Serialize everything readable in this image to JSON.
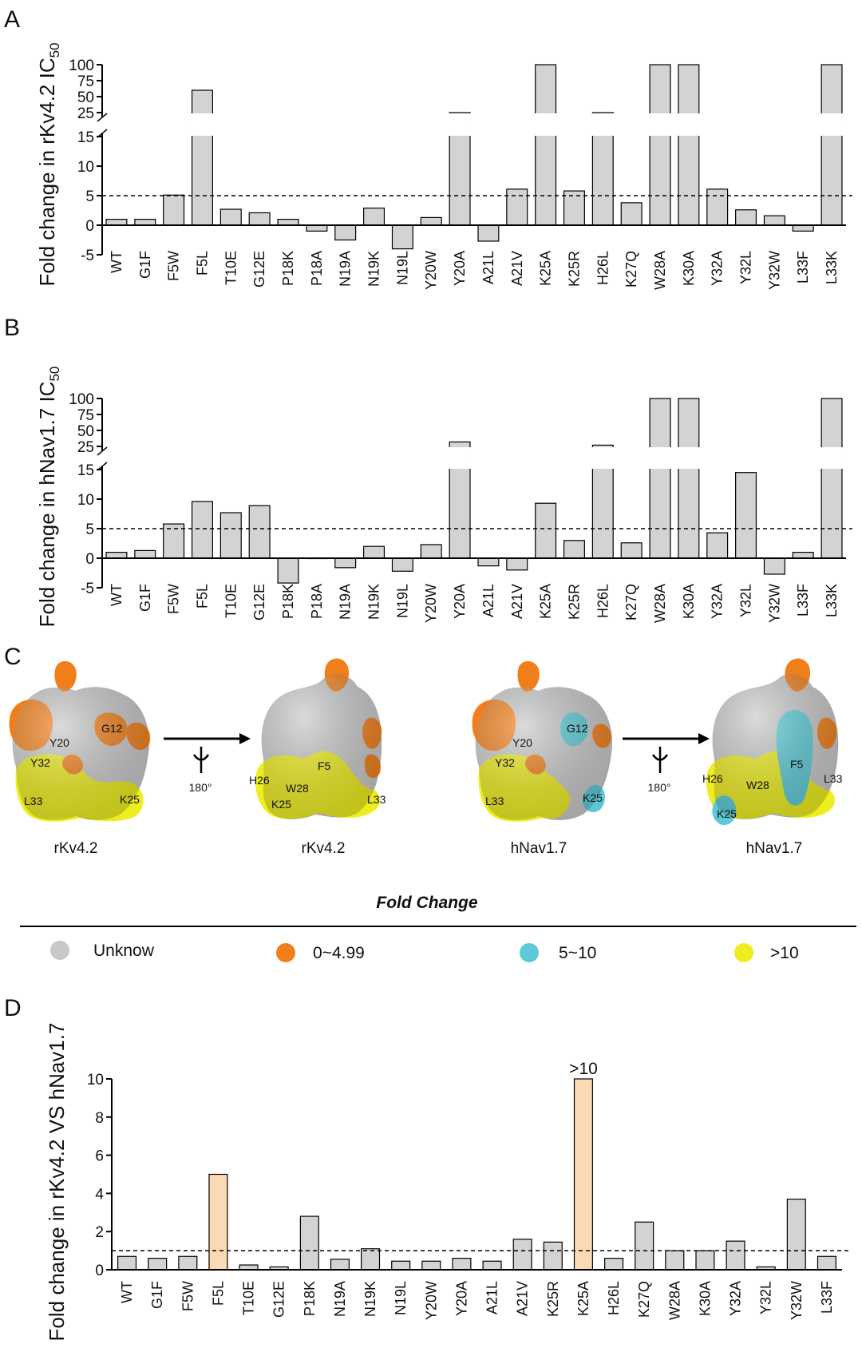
{
  "panels": {
    "A": {
      "letter": "A",
      "ylabel": "Fold change in rKv4.2 IC",
      "ylabel_sub": "50"
    },
    "B": {
      "letter": "B",
      "ylabel": "Fold change in hNav1.7 IC",
      "ylabel_sub": "50"
    },
    "C": {
      "letter": "C",
      "structures": [
        {
          "caption": "rKv4.2",
          "labels": [
            "G12",
            "Y20",
            "Y32",
            "L33",
            "K25"
          ]
        },
        {
          "caption": "rKv4.2",
          "labels": [
            "F5",
            "H26",
            "W28",
            "K25",
            "L33"
          ]
        },
        {
          "caption": "hNav1.7",
          "labels": [
            "G12",
            "Y20",
            "Y32",
            "K25",
            "L33"
          ]
        },
        {
          "caption": "hNav1.7",
          "labels": [
            "F5",
            "H26",
            "W28",
            "L33",
            "K25"
          ]
        }
      ],
      "rotation_labels": [
        "180°",
        "180°"
      ],
      "legend_title": "Fold Change",
      "legend": [
        {
          "label": "Unknow",
          "color": "#c8c8c8"
        },
        {
          "label": "0~4.99",
          "color": "#f07f1b"
        },
        {
          "label": "5~10",
          "color": "#5ccad6"
        },
        {
          "label": ">10",
          "color": "#eded1f"
        }
      ],
      "colors": {
        "unknown": "#c8c8c8",
        "orange": "#f07f1b",
        "cyan": "#5ccad6",
        "yellow": "#eded1f"
      }
    },
    "D": {
      "letter": "D",
      "ylabel": "Fold change in rKv4.2 VS hNav1.7"
    }
  },
  "chart_data": [
    {
      "type": "bar",
      "panel": "A",
      "categories": [
        "WT",
        "G1F",
        "F5W",
        "F5L",
        "T10E",
        "G12E",
        "P18K",
        "P18A",
        "N19A",
        "N19K",
        "N19L",
        "Y20W",
        "Y20A",
        "A21L",
        "A21V",
        "K25A",
        "K25R",
        "H26L",
        "K27Q",
        "W28A",
        "K30A",
        "Y32A",
        "Y32L",
        "Y32W",
        "L33F",
        "L33K"
      ],
      "values": [
        1,
        1,
        5.1,
        60,
        2.7,
        2.1,
        1,
        -1,
        -2.5,
        2.9,
        -4,
        1.3,
        22,
        -2.7,
        6.1,
        100,
        5.8,
        17,
        3.8,
        100,
        100,
        6.1,
        2.6,
        1.6,
        -1,
        100
      ],
      "ylim": [
        -5,
        100
      ],
      "axis_break": [
        15,
        25
      ],
      "yticks": [
        -5,
        0,
        5,
        10,
        15,
        25,
        50,
        75,
        100
      ],
      "reference_line": 5,
      "bar_color": "#d3d3d3"
    },
    {
      "type": "bar",
      "panel": "B",
      "categories": [
        "WT",
        "G1F",
        "F5W",
        "F5L",
        "T10E",
        "G12E",
        "P18K",
        "P18A",
        "N19A",
        "N19K",
        "N19L",
        "Y20W",
        "Y20A",
        "A21L",
        "A21V",
        "K25A",
        "K25R",
        "H26L",
        "K27Q",
        "W28A",
        "K30A",
        "Y32A",
        "Y32L",
        "Y32W",
        "L33F",
        "L33K"
      ],
      "values": [
        1,
        1.3,
        5.8,
        9.6,
        7.7,
        8.9,
        -4.2,
        0,
        -1.6,
        2,
        -2.2,
        2.3,
        32,
        -1.3,
        -2,
        9.3,
        3,
        27,
        2.6,
        100,
        100,
        4.3,
        14.5,
        -2.7,
        1,
        100
      ],
      "ylim": [
        -5,
        100
      ],
      "axis_break": [
        15,
        25
      ],
      "yticks": [
        -5,
        0,
        5,
        10,
        15,
        25,
        50,
        75,
        100
      ],
      "reference_line": 5,
      "bar_color": "#d3d3d3"
    },
    {
      "type": "bar",
      "panel": "D",
      "categories": [
        "WT",
        "G1F",
        "F5W",
        "F5L",
        "T10E",
        "G12E",
        "P18K",
        "N19A",
        "N19K",
        "N19L",
        "Y20W",
        "Y20A",
        "A21L",
        "A21V",
        "K25R",
        "K25A",
        "H26L",
        "K27Q",
        "W28A",
        "K30A",
        "Y32A",
        "Y32L",
        "Y32W",
        "L33F"
      ],
      "values": [
        0.7,
        0.6,
        0.7,
        5,
        0.25,
        0.15,
        2.8,
        0.55,
        1.1,
        0.45,
        0.45,
        0.6,
        0.45,
        1.6,
        1.45,
        10,
        0.6,
        2.5,
        1,
        1,
        1.5,
        0.15,
        3.7,
        0.7
      ],
      "highlight": [
        "F5L",
        "K25A"
      ],
      "annotations": [
        {
          "category": "K25A",
          "text": ">10"
        }
      ],
      "ylim": [
        0,
        10
      ],
      "yticks": [
        0,
        2,
        4,
        6,
        8,
        10
      ],
      "reference_line": 1,
      "bar_color": "#d3d3d3",
      "highlight_color": "#fbd9b5"
    }
  ]
}
